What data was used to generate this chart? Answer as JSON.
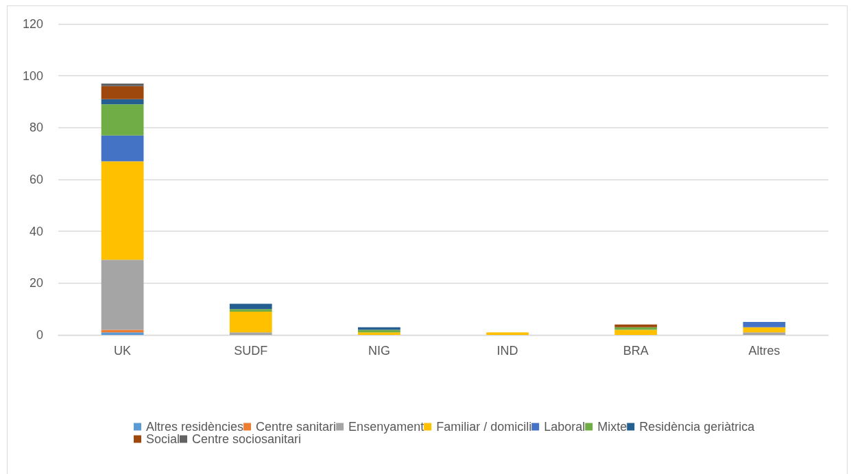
{
  "chart_data": {
    "type": "bar",
    "stacked": true,
    "categories": [
      "UK",
      "SUDF",
      "NIG",
      "IND",
      "BRA",
      "Altres"
    ],
    "series": [
      {
        "name": "Altres residències",
        "color": "#5b9bd5",
        "values": [
          1,
          0,
          0,
          0,
          0,
          0
        ]
      },
      {
        "name": "Centre sanitari",
        "color": "#ed7d31",
        "values": [
          1,
          0,
          0,
          0,
          0,
          0
        ]
      },
      {
        "name": "Ensenyament",
        "color": "#a5a5a5",
        "values": [
          27,
          1,
          0,
          0,
          0,
          1
        ]
      },
      {
        "name": "Familiar / domicili",
        "color": "#ffc000",
        "values": [
          38,
          8,
          1,
          1,
          2,
          2
        ]
      },
      {
        "name": "Laboral",
        "color": "#4472c4",
        "values": [
          10,
          0,
          0,
          0,
          0,
          2
        ]
      },
      {
        "name": "Mixte",
        "color": "#70ad47",
        "values": [
          12,
          1,
          1,
          0,
          1,
          0
        ]
      },
      {
        "name": "Residència geriàtrica",
        "color": "#255e91",
        "values": [
          2,
          2,
          1,
          0,
          0,
          0
        ]
      },
      {
        "name": "Social",
        "color": "#9e480e",
        "values": [
          5,
          0,
          0,
          0,
          1,
          0
        ]
      },
      {
        "name": "Centre sociosanitari",
        "color": "#636363",
        "values": [
          1,
          0,
          0,
          0,
          0,
          0
        ]
      }
    ],
    "ylim": [
      0,
      120
    ],
    "yticks": [
      0,
      20,
      40,
      60,
      80,
      100,
      120
    ],
    "grid": "y",
    "legend": "bottom"
  }
}
